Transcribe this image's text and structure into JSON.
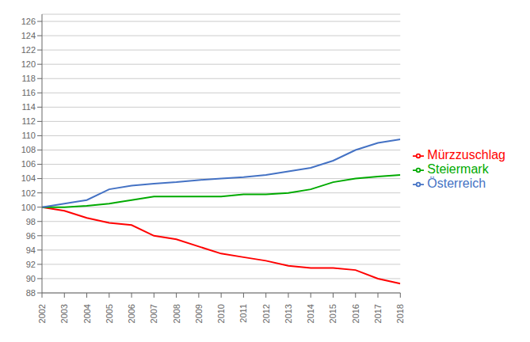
{
  "chart_data": {
    "type": "line",
    "x": [
      2002,
      2003,
      2004,
      2005,
      2006,
      2007,
      2008,
      2009,
      2010,
      2011,
      2012,
      2013,
      2014,
      2015,
      2016,
      2017,
      2018
    ],
    "series": [
      {
        "name": "Mürzzuschlag",
        "color": "#FF0000",
        "values": [
          100,
          99.5,
          98.5,
          97.8,
          97.5,
          96.0,
          95.5,
          94.5,
          93.5,
          93.0,
          92.5,
          91.8,
          91.5,
          91.5,
          91.2,
          90.0,
          89.3
        ]
      },
      {
        "name": "Steiermark",
        "color": "#00AA00",
        "values": [
          100,
          100.0,
          100.2,
          100.5,
          101.0,
          101.5,
          101.5,
          101.5,
          101.5,
          101.8,
          101.8,
          102.0,
          102.5,
          103.5,
          104.0,
          104.3,
          104.5
        ]
      },
      {
        "name": "Österreich",
        "color": "#4472C4",
        "values": [
          100,
          100.5,
          101.0,
          102.5,
          103.0,
          103.3,
          103.5,
          103.8,
          104.0,
          104.2,
          104.5,
          105.0,
          105.5,
          106.5,
          108.0,
          109.0,
          109.5
        ]
      }
    ],
    "xlim": [
      2002,
      2018
    ],
    "xticks": [
      2002,
      2003,
      2004,
      2005,
      2006,
      2007,
      2008,
      2009,
      2010,
      2011,
      2012,
      2013,
      2014,
      2015,
      2016,
      2017,
      2018
    ],
    "ylim": [
      88,
      127
    ],
    "yticks": [
      88,
      90,
      92,
      94,
      96,
      98,
      100,
      102,
      104,
      106,
      108,
      110,
      112,
      114,
      116,
      118,
      120,
      122,
      124,
      126
    ],
    "grid": "y",
    "legend": "right"
  }
}
